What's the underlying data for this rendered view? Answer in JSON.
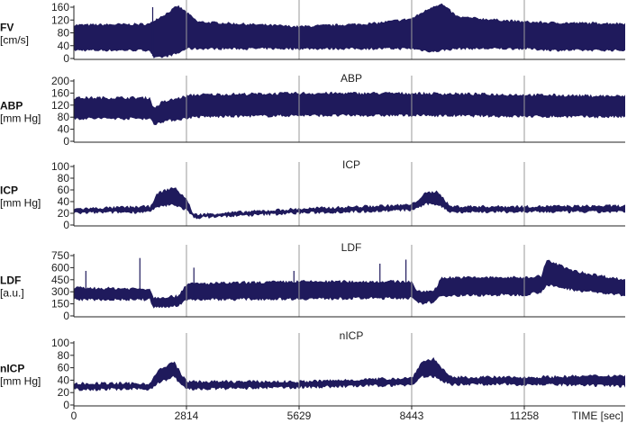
{
  "chart_data": {
    "type": "area",
    "color": "#1f1a5c",
    "gridline_color": "#9a9a9a",
    "xlabel": "TIME [sec]",
    "x_ticks": [
      0,
      2814,
      5629,
      8443,
      11258
    ],
    "x_tick_labels": [
      "0",
      "2814",
      "5629",
      "8443",
      "11258"
    ],
    "xlim": [
      0,
      13780
    ],
    "panels": [
      {
        "name": "FV",
        "unit": "[cm/s]",
        "title": "",
        "ticks": [
          0,
          40,
          80,
          120,
          160
        ],
        "ylim": [
          0,
          160
        ],
        "envelope": [
          [
            0,
            25,
            105
          ],
          [
            1900,
            25,
            108
          ],
          [
            2000,
            0,
            120
          ],
          [
            2300,
            5,
            140
          ],
          [
            2600,
            15,
            165
          ],
          [
            2814,
            30,
            145
          ],
          [
            3100,
            30,
            115
          ],
          [
            5629,
            30,
            100
          ],
          [
            7500,
            30,
            110
          ],
          [
            8443,
            30,
            125
          ],
          [
            9000,
            20,
            165
          ],
          [
            9200,
            25,
            170
          ],
          [
            9600,
            30,
            130
          ],
          [
            11258,
            30,
            115
          ],
          [
            12000,
            25,
            112
          ],
          [
            13780,
            25,
            110
          ]
        ],
        "spikes": [
          [
            1970,
            160
          ]
        ]
      },
      {
        "name": "ABP",
        "unit": "[mm Hg]",
        "title": "ABP",
        "ticks": [
          0,
          40,
          80,
          120,
          160,
          200
        ],
        "ylim": [
          0,
          200
        ],
        "envelope": [
          [
            0,
            75,
            145
          ],
          [
            1900,
            75,
            145
          ],
          [
            2000,
            55,
            110
          ],
          [
            2200,
            65,
            130
          ],
          [
            2800,
            75,
            150
          ],
          [
            3000,
            80,
            155
          ],
          [
            5629,
            85,
            160
          ],
          [
            8443,
            85,
            160
          ],
          [
            11258,
            82,
            155
          ],
          [
            13780,
            80,
            150
          ]
        ],
        "spikes": []
      },
      {
        "name": "ICP",
        "unit": "[mm Hg]",
        "title": "ICP",
        "ticks": [
          0,
          20,
          40,
          60,
          80,
          100
        ],
        "ylim": [
          0,
          100
        ],
        "envelope": [
          [
            0,
            20,
            28
          ],
          [
            1900,
            22,
            32
          ],
          [
            2100,
            30,
            55
          ],
          [
            2500,
            35,
            65
          ],
          [
            2814,
            25,
            45
          ],
          [
            3000,
            12,
            18
          ],
          [
            5629,
            20,
            28
          ],
          [
            8443,
            25,
            35
          ],
          [
            8800,
            35,
            55
          ],
          [
            9100,
            35,
            58
          ],
          [
            9400,
            22,
            32
          ],
          [
            11258,
            22,
            32
          ],
          [
            13780,
            22,
            33
          ]
        ],
        "spikes": []
      },
      {
        "name": "LDF",
        "unit": "[a.u.]",
        "title": "LDF",
        "ticks": [
          0,
          150,
          300,
          450,
          600,
          750
        ],
        "ylim": [
          0,
          750
        ],
        "envelope": [
          [
            0,
            200,
            350
          ],
          [
            1900,
            200,
            340
          ],
          [
            2000,
            100,
            230
          ],
          [
            2600,
            120,
            250
          ],
          [
            2814,
            200,
            400
          ],
          [
            5629,
            210,
            430
          ],
          [
            8443,
            220,
            430
          ],
          [
            8600,
            150,
            300
          ],
          [
            9000,
            170,
            320
          ],
          [
            9200,
            250,
            480
          ],
          [
            11258,
            260,
            480
          ],
          [
            11700,
            300,
            500
          ],
          [
            11800,
            380,
            700
          ],
          [
            12500,
            320,
            560
          ],
          [
            13780,
            250,
            450
          ]
        ],
        "spikes": [
          [
            3000,
            600
          ],
          [
            1650,
            720
          ],
          [
            7650,
            650
          ],
          [
            8300,
            700
          ],
          [
            5500,
            560
          ],
          [
            300,
            560
          ]
        ]
      },
      {
        "name": "nICP",
        "unit": "[mm Hg]",
        "title": "nICP",
        "ticks": [
          0,
          20,
          40,
          60,
          80,
          100
        ],
        "ylim": [
          0,
          100
        ],
        "envelope": [
          [
            0,
            25,
            35
          ],
          [
            1900,
            25,
            35
          ],
          [
            2100,
            35,
            55
          ],
          [
            2500,
            45,
            70
          ],
          [
            2814,
            25,
            38
          ],
          [
            5629,
            28,
            38
          ],
          [
            8443,
            32,
            44
          ],
          [
            8700,
            45,
            70
          ],
          [
            9000,
            45,
            75
          ],
          [
            9400,
            33,
            45
          ],
          [
            11258,
            33,
            45
          ],
          [
            13780,
            30,
            48
          ]
        ],
        "spikes": []
      }
    ]
  }
}
